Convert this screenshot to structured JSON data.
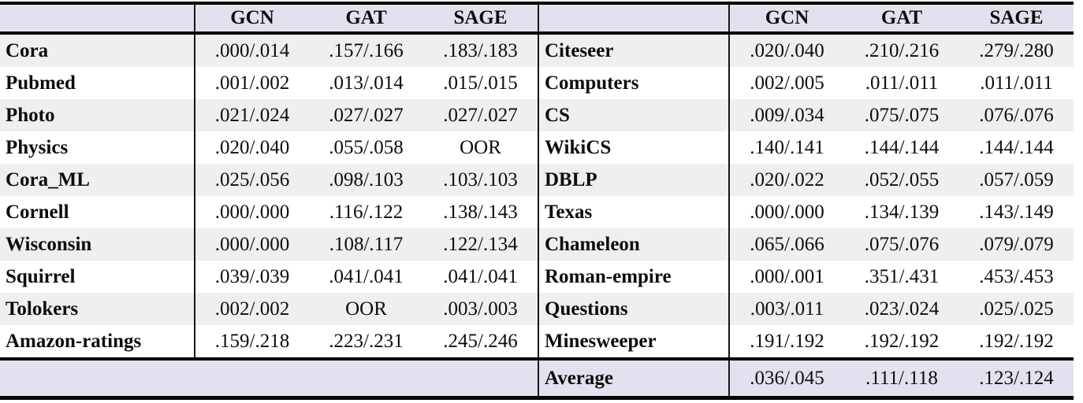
{
  "table": {
    "model_columns": [
      "GCN",
      "GAT",
      "SAGE"
    ],
    "left": {
      "rows": [
        {
          "label": "Cora",
          "values": [
            ".000/.014",
            ".157/.166",
            ".183/.183"
          ]
        },
        {
          "label": "Pubmed",
          "values": [
            ".001/.002",
            ".013/.014",
            ".015/.015"
          ]
        },
        {
          "label": "Photo",
          "values": [
            ".021/.024",
            ".027/.027",
            ".027/.027"
          ]
        },
        {
          "label": "Physics",
          "values": [
            ".020/.040",
            ".055/.058",
            "OOR"
          ]
        },
        {
          "label": "Cora_ML",
          "values": [
            ".025/.056",
            ".098/.103",
            ".103/.103"
          ]
        },
        {
          "label": "Cornell",
          "values": [
            ".000/.000",
            ".116/.122",
            ".138/.143"
          ]
        },
        {
          "label": "Wisconsin",
          "values": [
            ".000/.000",
            ".108/.117",
            ".122/.134"
          ]
        },
        {
          "label": "Squirrel",
          "values": [
            ".039/.039",
            ".041/.041",
            ".041/.041"
          ]
        },
        {
          "label": "Tolokers",
          "values": [
            ".002/.002",
            "OOR",
            ".003/.003"
          ]
        },
        {
          "label": "Amazon-ratings",
          "values": [
            ".159/.218",
            ".223/.231",
            ".245/.246"
          ]
        }
      ]
    },
    "right": {
      "rows": [
        {
          "label": "Citeseer",
          "values": [
            ".020/.040",
            ".210/.216",
            ".279/.280"
          ]
        },
        {
          "label": "Computers",
          "values": [
            ".002/.005",
            ".011/.011",
            ".011/.011"
          ]
        },
        {
          "label": "CS",
          "values": [
            ".009/.034",
            ".075/.075",
            ".076/.076"
          ]
        },
        {
          "label": "WikiCS",
          "values": [
            ".140/.141",
            ".144/.144",
            ".144/.144"
          ]
        },
        {
          "label": "DBLP",
          "values": [
            ".020/.022",
            ".052/.055",
            ".057/.059"
          ]
        },
        {
          "label": "Texas",
          "values": [
            ".000/.000",
            ".134/.139",
            ".143/.149"
          ]
        },
        {
          "label": "Chameleon",
          "values": [
            ".065/.066",
            ".075/.076",
            ".079/.079"
          ]
        },
        {
          "label": "Roman-empire",
          "values": [
            ".000/.001",
            ".351/.431",
            ".453/.453"
          ]
        },
        {
          "label": "Questions",
          "values": [
            ".003/.011",
            ".023/.024",
            ".025/.025"
          ]
        },
        {
          "label": "Minesweeper",
          "values": [
            ".191/.192",
            ".192/.192",
            ".192/.192"
          ]
        }
      ]
    },
    "average": {
      "label": "Average",
      "values": [
        ".036/.045",
        ".111/.118",
        ".123/.124"
      ]
    },
    "colors": {
      "header_band": "#e4e1ee",
      "stripe": "#efeff1",
      "border": "#000000"
    }
  }
}
